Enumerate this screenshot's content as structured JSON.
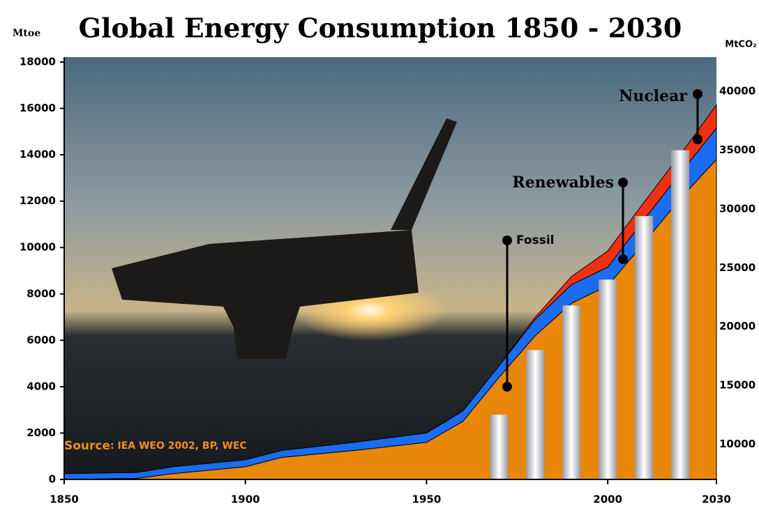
{
  "chart_data": {
    "type": "area",
    "title": "Global Energy Consumption 1850 - 2030",
    "y_label": "Mtoe",
    "y2_label": "MtCO₂",
    "source_label": "Source",
    "source_text": ": IEA WEO 2002, BP, WEC",
    "x": [
      1850,
      1870,
      1880,
      1900,
      1910,
      1930,
      1950,
      1960,
      1970,
      1980,
      1990,
      2000,
      2010,
      2020,
      2030
    ],
    "xlim": [
      1850,
      2030
    ],
    "xticks": [
      1850,
      1900,
      1950,
      2000,
      2030
    ],
    "ylim": [
      0,
      18000
    ],
    "yticks": [
      0,
      2000,
      4000,
      6000,
      8000,
      10000,
      12000,
      14000,
      16000,
      18000
    ],
    "y2lim": [
      7000,
      42500
    ],
    "y2ticks": [
      10000,
      15000,
      20000,
      25000,
      30000,
      35000,
      40000
    ],
    "series": [
      {
        "name": "Fossil",
        "color": "#e8870a",
        "values": [
          0,
          50,
          250,
          550,
          950,
          1250,
          1600,
          2500,
          4400,
          6200,
          7600,
          8350,
          10200,
          12100,
          13800
        ]
      },
      {
        "name": "Renewables",
        "color": "#1a6cf0",
        "values": [
          250,
          250,
          300,
          300,
          300,
          350,
          400,
          450,
          500,
          700,
          800,
          800,
          1000,
          1100,
          1350
        ]
      },
      {
        "name": "Nuclear",
        "color": "#f03010",
        "values": [
          0,
          0,
          0,
          0,
          0,
          0,
          0,
          0,
          0,
          100,
          350,
          700,
          750,
          800,
          1000
        ]
      },
      {
        "type": "bar",
        "axis": "y2",
        "color": "#9a9aa2",
        "x": [
          1970,
          1980,
          1990,
          2000,
          2010,
          2020
        ],
        "values": [
          12500,
          18000,
          21800,
          24000,
          29400,
          35000
        ]
      }
    ]
  }
}
